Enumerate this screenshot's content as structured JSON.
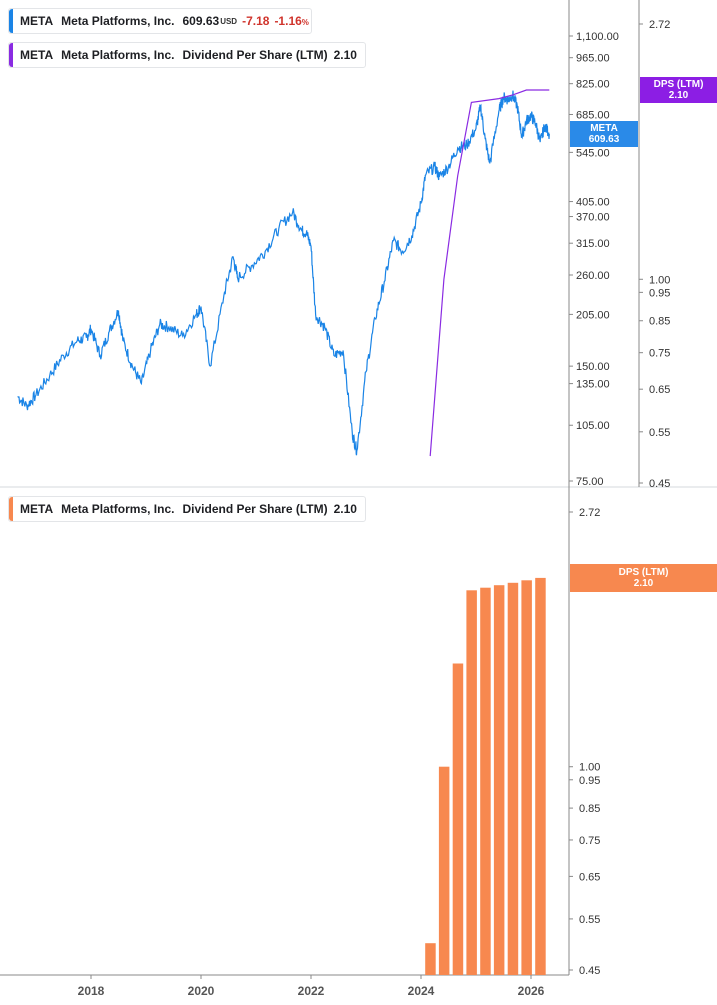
{
  "legends": {
    "price": {
      "symbol": "META",
      "name": "Meta Platforms, Inc.",
      "last": "609.63",
      "currency": "USD",
      "change": "-7.18",
      "change_pct": "-1.16",
      "pct_sign": "%"
    },
    "dps_top": {
      "symbol": "META",
      "name": "Meta Platforms, Inc.",
      "metric": "Dividend Per Share (LTM)",
      "value": "2.10"
    },
    "dps_bottom": {
      "symbol": "META",
      "name": "Meta Platforms, Inc.",
      "metric": "Dividend Per Share (LTM)",
      "value": "2.10"
    }
  },
  "tags": {
    "price": {
      "line1": "META",
      "line2": "609.63"
    },
    "dps_top": {
      "line1": "DPS (LTM)",
      "line2": "2.10"
    },
    "dps_bottom": {
      "line1": "DPS (LTM)",
      "line2": "2.10"
    }
  },
  "colors": {
    "price": "#1a84e6",
    "dps_line": "#8a2be2",
    "dps_bar": "#f7884f",
    "dps_tag": "#8c1ee4",
    "price_tag": "#2a8ae8",
    "grid": "#d6d9de",
    "text": "#333333",
    "neg": "#d0342c"
  },
  "chart_data": [
    {
      "type": "line",
      "scale": "log",
      "x_ticks": [
        "2018",
        "2020",
        "2022",
        "2024",
        "2026"
      ],
      "y_ticks_left": [
        "1,100.00",
        "965.00",
        "825.00",
        "685.00",
        "545.00",
        "405.00",
        "370.00",
        "315.00",
        "260.00",
        "205.00",
        "150.00",
        "135.00",
        "105.00",
        "75.00"
      ],
      "y_ticks_right": [
        "2.72",
        "1.00",
        "0.95",
        "0.85",
        "0.75",
        "0.65",
        "0.55",
        "0.45"
      ],
      "series": [
        {
          "name": "META",
          "axis": "left",
          "points": [
            [
              "2016-09",
              125
            ],
            [
              "2016-11",
              118
            ],
            [
              "2017-01",
              126
            ],
            [
              "2017-04",
              142
            ],
            [
              "2017-07",
              160
            ],
            [
              "2017-10",
              175
            ],
            [
              "2017-12",
              178
            ],
            [
              "2018-01",
              188
            ],
            [
              "2018-03",
              160
            ],
            [
              "2018-05",
              185
            ],
            [
              "2018-07",
              210
            ],
            [
              "2018-08",
              175
            ],
            [
              "2018-10",
              150
            ],
            [
              "2018-12",
              135
            ],
            [
              "2019-02",
              165
            ],
            [
              "2019-04",
              193
            ],
            [
              "2019-06",
              190
            ],
            [
              "2019-09",
              180
            ],
            [
              "2019-12",
              205
            ],
            [
              "2020-01",
              215
            ],
            [
              "2020-03",
              150
            ],
            [
              "2020-06",
              230
            ],
            [
              "2020-08",
              290
            ],
            [
              "2020-09",
              255
            ],
            [
              "2020-12",
              275
            ],
            [
              "2021-03",
              300
            ],
            [
              "2021-06",
              345
            ],
            [
              "2021-09",
              380
            ],
            [
              "2021-11",
              340
            ],
            [
              "2021-12",
              335
            ],
            [
              "2022-01",
              310
            ],
            [
              "2022-02",
              205
            ],
            [
              "2022-04",
              190
            ],
            [
              "2022-06",
              160
            ],
            [
              "2022-08",
              165
            ],
            [
              "2022-10",
              100
            ],
            [
              "2022-11",
              90
            ],
            [
              "2023-01",
              145
            ],
            [
              "2023-03",
              200
            ],
            [
              "2023-05",
              250
            ],
            [
              "2023-07",
              320
            ],
            [
              "2023-09",
              300
            ],
            [
              "2023-11",
              330
            ],
            [
              "2024-01",
              400
            ],
            [
              "2024-02",
              475
            ],
            [
              "2024-04",
              500
            ],
            [
              "2024-05",
              470
            ],
            [
              "2024-07",
              500
            ],
            [
              "2024-09",
              560
            ],
            [
              "2024-11",
              570
            ],
            [
              "2025-01",
              630
            ],
            [
              "2025-02",
              720
            ],
            [
              "2025-03",
              590
            ],
            [
              "2025-04",
              510
            ],
            [
              "2025-06",
              700
            ],
            [
              "2025-07",
              760
            ],
            [
              "2025-08",
              750
            ],
            [
              "2025-09",
              770
            ],
            [
              "2025-10",
              720
            ],
            [
              "2025-11",
              600
            ],
            [
              "2025-12",
              660
            ],
            [
              "2026-01",
              680
            ],
            [
              "2026-02",
              650
            ],
            [
              "2026-03",
              580
            ],
            [
              "2026-04",
              640
            ],
            [
              "2026-05",
              609.63
            ]
          ]
        },
        {
          "name": "Dividend Per Share (LTM)",
          "axis": "right",
          "points": [
            [
              "2024-03",
              0.5
            ],
            [
              "2024-06",
              1.0
            ],
            [
              "2024-09",
              1.5
            ],
            [
              "2024-12",
              2.0
            ],
            [
              "2025-06",
              2.03
            ],
            [
              "2025-09",
              2.06
            ],
            [
              "2025-12",
              2.1
            ],
            [
              "2026-05",
              2.1
            ]
          ]
        }
      ]
    },
    {
      "type": "bar",
      "scale": "log",
      "y_ticks_right": [
        "2.72",
        "1.00",
        "0.95",
        "0.85",
        "0.75",
        "0.65",
        "0.55",
        "0.45"
      ],
      "x_ticks": [
        "2018",
        "2020",
        "2022",
        "2024",
        "2026"
      ],
      "series": [
        {
          "name": "Dividend Per Share (LTM)",
          "points": [
            [
              "2024-03",
              0.5
            ],
            [
              "2024-06",
              1.0
            ],
            [
              "2024-09",
              1.5
            ],
            [
              "2024-12",
              2.0
            ],
            [
              "2025-03",
              2.02
            ],
            [
              "2025-06",
              2.04
            ],
            [
              "2025-09",
              2.06
            ],
            [
              "2025-12",
              2.08
            ],
            [
              "2026-03",
              2.1
            ]
          ]
        }
      ]
    }
  ]
}
